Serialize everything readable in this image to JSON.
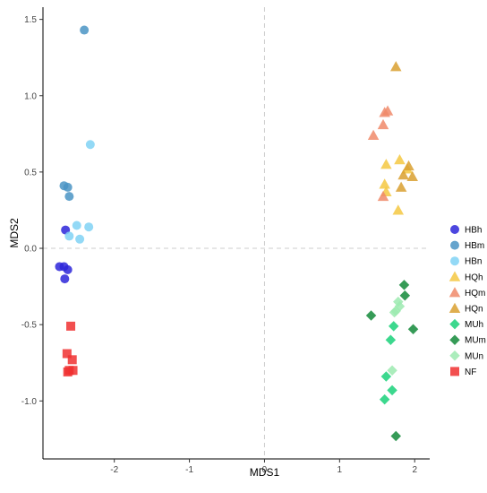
{
  "chart_data": {
    "type": "scatter",
    "title": "",
    "xlabel": "MDS1",
    "ylabel": "MDS2",
    "xlim": [
      -2.95,
      2.2
    ],
    "ylim": [
      -1.38,
      1.58
    ],
    "xticks": [
      -2,
      -1,
      0,
      1,
      2
    ],
    "yticks": [
      -1.0,
      -0.5,
      0.0,
      0.5,
      1.0,
      1.5
    ],
    "xtick_labels": [
      "-2",
      "-1",
      "0",
      "1",
      "2"
    ],
    "ytick_labels": [
      "-1.0",
      "-0.5",
      "0.0",
      "0.5",
      "1.0",
      "1.5"
    ],
    "grid": false,
    "reference_lines": {
      "x": 0,
      "y": 0,
      "style": "dashed",
      "color": "#cccccc"
    },
    "legend_position": "right",
    "series": [
      {
        "name": "HBh",
        "shape": "circle",
        "color": "#2d26d9",
        "points": [
          [
            -2.65,
            0.12
          ],
          [
            -2.73,
            -0.12
          ],
          [
            -2.67,
            -0.12
          ],
          [
            -2.62,
            -0.14
          ],
          [
            -2.66,
            -0.2
          ]
        ]
      },
      {
        "name": "HBm",
        "shape": "circle",
        "color": "#4a94c4",
        "points": [
          [
            -2.4,
            1.43
          ],
          [
            -2.67,
            0.41
          ],
          [
            -2.62,
            0.4
          ],
          [
            -2.6,
            0.34
          ]
        ]
      },
      {
        "name": "HBn",
        "shape": "circle",
        "color": "#80d2f5",
        "points": [
          [
            -2.32,
            0.68
          ],
          [
            -2.5,
            0.15
          ],
          [
            -2.34,
            0.14
          ],
          [
            -2.6,
            0.08
          ],
          [
            -2.46,
            0.06
          ]
        ]
      },
      {
        "name": "HQh",
        "shape": "triangle",
        "color": "#f5c842",
        "points": [
          [
            1.62,
            0.55
          ],
          [
            1.8,
            0.58
          ],
          [
            1.9,
            0.52
          ],
          [
            1.6,
            0.42
          ],
          [
            1.62,
            0.37
          ],
          [
            1.78,
            0.25
          ]
        ]
      },
      {
        "name": "HQm",
        "shape": "triangle",
        "color": "#f08a6a",
        "points": [
          [
            1.6,
            0.89
          ],
          [
            1.64,
            0.9
          ],
          [
            1.58,
            0.81
          ],
          [
            1.45,
            0.74
          ],
          [
            1.58,
            0.34
          ]
        ]
      },
      {
        "name": "HQn",
        "shape": "triangle",
        "color": "#d9a030",
        "points": [
          [
            1.75,
            1.19
          ],
          [
            1.85,
            0.48
          ],
          [
            1.97,
            0.47
          ],
          [
            1.82,
            0.4
          ],
          [
            1.92,
            0.54
          ]
        ]
      },
      {
        "name": "MUh",
        "shape": "diamond",
        "color": "#1ad17a",
        "points": [
          [
            1.72,
            -0.51
          ],
          [
            1.68,
            -0.6
          ],
          [
            1.62,
            -0.84
          ],
          [
            1.7,
            -0.93
          ],
          [
            1.6,
            -0.99
          ]
        ]
      },
      {
        "name": "MUm",
        "shape": "diamond",
        "color": "#138a3a",
        "points": [
          [
            1.86,
            -0.24
          ],
          [
            1.87,
            -0.31
          ],
          [
            1.42,
            -0.44
          ],
          [
            1.98,
            -0.53
          ],
          [
            1.75,
            -1.23
          ]
        ]
      },
      {
        "name": "MUn",
        "shape": "diamond",
        "color": "#9ceab0",
        "points": [
          [
            1.78,
            -0.35
          ],
          [
            1.8,
            -0.38
          ],
          [
            1.75,
            -0.41
          ],
          [
            1.73,
            -0.42
          ],
          [
            1.7,
            -0.8
          ]
        ]
      },
      {
        "name": "NF",
        "shape": "square",
        "color": "#f03030",
        "points": [
          [
            -2.58,
            -0.51
          ],
          [
            -2.63,
            -0.69
          ],
          [
            -2.56,
            -0.73
          ],
          [
            -2.6,
            -0.8
          ],
          [
            -2.55,
            -0.8
          ],
          [
            -2.62,
            -0.81
          ]
        ]
      }
    ]
  }
}
